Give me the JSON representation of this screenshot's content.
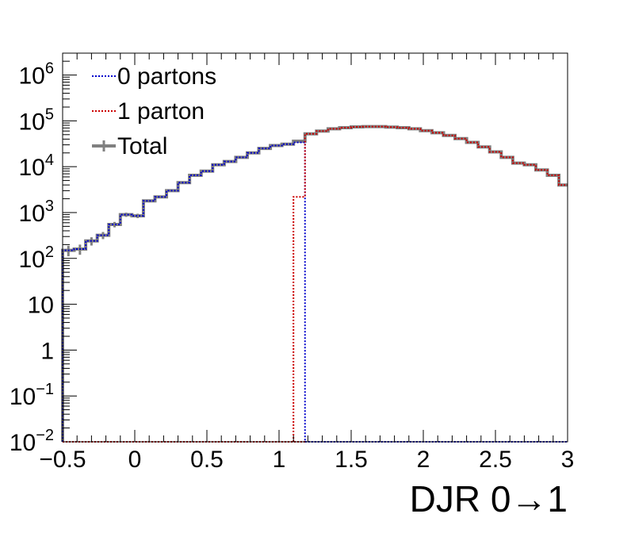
{
  "chart_data": {
    "type": "step-histogram",
    "xlabel": "DJR 0→1",
    "ylabel": "",
    "xlim": [
      -0.5,
      3.0
    ],
    "ylim": [
      0.01,
      3000000
    ],
    "yscale": "log",
    "grid": false,
    "legend_position": "top-left",
    "bin_width": 0.08,
    "x_ticks": [
      {
        "value": -0.5,
        "label": "−0.5"
      },
      {
        "value": 0,
        "label": "0"
      },
      {
        "value": 0.5,
        "label": "0.5"
      },
      {
        "value": 1,
        "label": "1"
      },
      {
        "value": 1.5,
        "label": "1.5"
      },
      {
        "value": 2,
        "label": "2"
      },
      {
        "value": 2.5,
        "label": "2.5"
      },
      {
        "value": 3,
        "label": "3"
      }
    ],
    "y_ticks": [
      {
        "value": 0.01,
        "base": "10",
        "exp": "−2"
      },
      {
        "value": 0.1,
        "base": "10",
        "exp": "−1"
      },
      {
        "value": 1,
        "base": "1",
        "exp": ""
      },
      {
        "value": 10,
        "base": "10",
        "exp": ""
      },
      {
        "value": 100,
        "base": "10",
        "exp": "2"
      },
      {
        "value": 1000,
        "base": "10",
        "exp": "3"
      },
      {
        "value": 10000,
        "base": "10",
        "exp": "4"
      },
      {
        "value": 100000,
        "base": "10",
        "exp": "5"
      },
      {
        "value": 1000000,
        "base": "10",
        "exp": "6"
      }
    ],
    "series": [
      {
        "name": "0 partons",
        "color": "#0000cc",
        "style": "dotted",
        "x_edges": [
          -0.5,
          -0.42,
          -0.34,
          -0.26,
          -0.18,
          -0.1,
          -0.02,
          0.06,
          0.14,
          0.22,
          0.3,
          0.38,
          0.46,
          0.54,
          0.62,
          0.7,
          0.78,
          0.86,
          0.94,
          1.02,
          1.1,
          1.18
        ],
        "values": [
          150,
          160,
          240,
          320,
          550,
          900,
          850,
          1800,
          2200,
          3000,
          4500,
          6500,
          8000,
          11000,
          13000,
          16000,
          20000,
          25000,
          29000,
          31000,
          34000
        ]
      },
      {
        "name": "1 parton",
        "color": "#cc0000",
        "style": "dotted",
        "x_edges": [
          1.1,
          1.18,
          1.26,
          1.34,
          1.42,
          1.5,
          1.58,
          1.66,
          1.74,
          1.82,
          1.9,
          1.98,
          2.06,
          2.14,
          2.22,
          2.3,
          2.38,
          2.46,
          2.54,
          2.62,
          2.7,
          2.78,
          2.86,
          2.94,
          3.0
        ],
        "values": [
          2200,
          52000,
          60000,
          67000,
          71000,
          74000,
          75000,
          75000,
          73000,
          71000,
          67000,
          61000,
          55000,
          48000,
          41000,
          34000,
          27000,
          21000,
          16000,
          12000,
          11000,
          8500,
          6500,
          4000
        ]
      },
      {
        "name": "Total",
        "color": "#808080",
        "style": "solid",
        "x_edges": [
          -0.5,
          -0.42,
          -0.34,
          -0.26,
          -0.18,
          -0.1,
          -0.02,
          0.06,
          0.14,
          0.22,
          0.3,
          0.38,
          0.46,
          0.54,
          0.62,
          0.7,
          0.78,
          0.86,
          0.94,
          1.02,
          1.1,
          1.18,
          1.26,
          1.34,
          1.42,
          1.5,
          1.58,
          1.66,
          1.74,
          1.82,
          1.9,
          1.98,
          2.06,
          2.14,
          2.22,
          2.3,
          2.38,
          2.46,
          2.54,
          2.62,
          2.7,
          2.78,
          2.86,
          2.94,
          3.0
        ],
        "values": [
          150,
          160,
          240,
          320,
          550,
          900,
          850,
          1800,
          2200,
          3000,
          4500,
          6500,
          8000,
          11000,
          13000,
          16000,
          20000,
          25000,
          29000,
          31000,
          36000,
          52000,
          60000,
          67000,
          71000,
          74000,
          75000,
          75000,
          73000,
          71000,
          67000,
          61000,
          55000,
          48000,
          41000,
          34000,
          27000,
          21000,
          16000,
          12000,
          11000,
          8500,
          6500,
          4000
        ]
      }
    ]
  }
}
